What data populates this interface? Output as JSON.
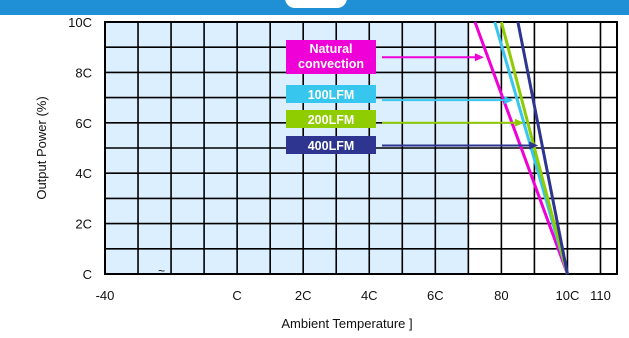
{
  "chart_data": {
    "type": "line",
    "title": "",
    "xlabel": "Ambient Temperature  ]",
    "ylabel": "Output Power  (%)",
    "xlim": [
      -40,
      115
    ],
    "ylim": [
      0,
      100
    ],
    "x_ticks": [
      -40,
      -20,
      0,
      20,
      40,
      60,
      80,
      100,
      110
    ],
    "x_tick_labels": [
      "-40",
      "",
      "C",
      "2C",
      "4C",
      "6C",
      "80",
      "10C",
      "110"
    ],
    "y_ticks": [
      0,
      20,
      40,
      60,
      80,
      100
    ],
    "y_tick_labels": [
      "C",
      "2C",
      "4C",
      "6C",
      "8C",
      "10C"
    ],
    "grid": true,
    "shaded_region": {
      "x_from": -40,
      "x_to": 70,
      "color": "#dcefff"
    },
    "extra_mark": "~",
    "series": [
      {
        "name": "Natural convection",
        "label_lines": [
          "Natural",
          "convection"
        ],
        "color": "#ee00d6",
        "x": [
          72,
          100
        ],
        "y": [
          100,
          0
        ],
        "arrow_y": 86
      },
      {
        "name": "100LFM",
        "label_lines": [
          "100LFM"
        ],
        "color": "#37c6ee",
        "x": [
          78,
          100
        ],
        "y": [
          100,
          0
        ],
        "arrow_y": 69
      },
      {
        "name": "200LFM",
        "label_lines": [
          "200LFM"
        ],
        "color": "#8fcc00",
        "x": [
          80,
          100
        ],
        "y": [
          100,
          0
        ],
        "arrow_y": 60
      },
      {
        "name": "400LFM",
        "label_lines": [
          "400LFM"
        ],
        "color": "#2d3590",
        "x": [
          85,
          100
        ],
        "y": [
          100,
          0
        ],
        "arrow_y": 51
      }
    ]
  }
}
